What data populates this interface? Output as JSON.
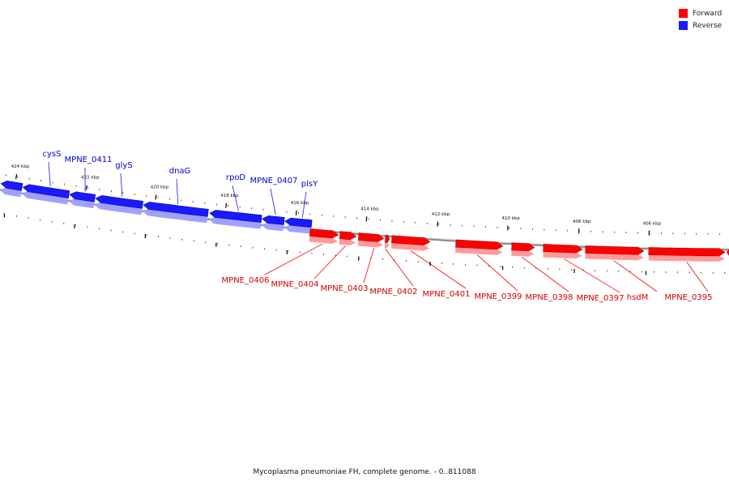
{
  "legend": {
    "forward_label": "Forward",
    "reverse_label": "Reverse",
    "forward_color": "#ff0000",
    "reverse_color": "#1a1aff"
  },
  "caption": "Mycoplasma pneumoniae FH, complete genome. - 0..811088",
  "colors": {
    "forward": "#ff0000",
    "forward_dark": "#a80000",
    "forward_light": "#ff9a9a",
    "reverse": "#1a1aff",
    "reverse_dark": "#0000a0",
    "reverse_light": "#a0a0ff",
    "backbone": "#8a8a8a",
    "label_forward": "#d40000",
    "label_reverse": "#0000cc"
  },
  "chart_data": {
    "type": "genome_map",
    "title": "Mycoplasma pneumoniae FH, complete genome. - 0..811088",
    "x_unit": "kbp",
    "ticks_kbp": [
      424,
      422,
      420,
      418,
      416,
      414,
      412,
      410,
      408,
      406
    ],
    "tick_labels": [
      "424 kbp",
      "422 kbp",
      "420 kbp",
      "418 kbp",
      "416 kbp",
      "414 kbp",
      "412 kbp",
      "410 kbp",
      "408 kbp",
      "406 kbp"
    ],
    "series": [
      {
        "name": "Forward",
        "strand": "forward",
        "genes": [
          "MPNE_0406",
          "MPNE_0404",
          "MPNE_0403",
          "MPNE_0402",
          "MPNE_0401",
          "MPNE_0399",
          "MPNE_0398",
          "MPNE_0397",
          "hsdM",
          "MPNE_0395"
        ]
      },
      {
        "name": "Reverse",
        "strand": "reverse",
        "genes": [
          "cysS",
          "MPNE_0411",
          "glyS",
          "dnaG",
          "rpoD",
          "MPNE_0407",
          "plsY"
        ]
      }
    ]
  }
}
